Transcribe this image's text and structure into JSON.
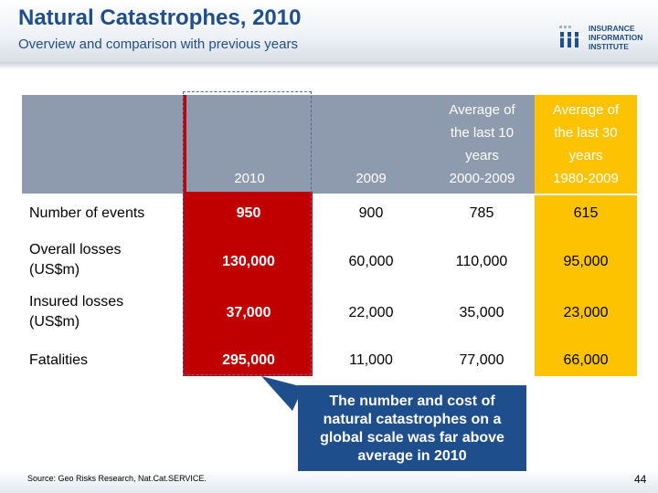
{
  "header": {
    "title": "Natural Catastrophes, 2010",
    "subtitle": "Overview and comparison with previous years"
  },
  "logo": {
    "line1": "INSURANCE",
    "line2": "INFORMATION",
    "line3": "INSTITUTE",
    "icon": "iii-logo-icon"
  },
  "table": {
    "columns": [
      {
        "label": "2010",
        "lines": [
          "2010"
        ]
      },
      {
        "label": "2009",
        "lines": [
          "2009"
        ]
      },
      {
        "label": "Average of the last 10 years 2000-2009",
        "lines": [
          "Average of",
          "the last 10",
          "years",
          "2000-2009"
        ]
      },
      {
        "label": "Average of the last 30 years 1980-2009",
        "lines": [
          "Average of",
          "the last 30",
          "years",
          "1980-2009"
        ]
      }
    ],
    "rows": [
      {
        "label": [
          "Number of events"
        ],
        "values": [
          "950",
          "900",
          "785",
          "615"
        ]
      },
      {
        "label": [
          "Overall losses",
          "(US$m)"
        ],
        "values": [
          "130,000",
          "60,000",
          "110,000",
          "95,000"
        ]
      },
      {
        "label": [
          "Insured losses",
          "(US$m)"
        ],
        "values": [
          "37,000",
          "22,000",
          "35,000",
          "23,000"
        ]
      },
      {
        "label": [
          "Fatalities"
        ],
        "values": [
          "295,000",
          "11,000",
          "77,000",
          "66,000"
        ]
      }
    ]
  },
  "callout": {
    "text": "The number and cost of natural catastrophes on a global scale was far above average in 2010"
  },
  "footer": {
    "source": "Source: Geo Risks Research, Nat.Cat.SERVICE.",
    "page_number": "44"
  },
  "colors": {
    "brand_blue": "#1f4e8c",
    "header_gray": "#8e9aad",
    "highlight_red": "#c00000",
    "highlight_yellow": "#fdc300"
  }
}
